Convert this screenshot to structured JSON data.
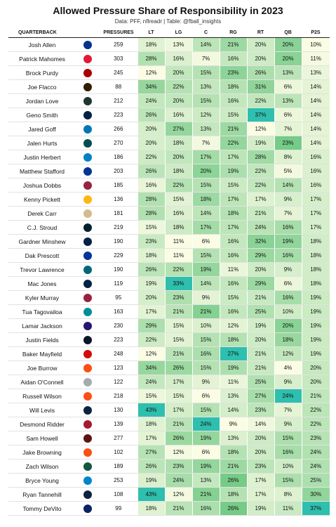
{
  "header": {
    "title": "Allowed Pressure Share of Responsibility in 2023",
    "subtitle": "Data: PFF, nflreadr | Table: @fball_insights"
  },
  "table": {
    "columns": [
      "QUARTERBACK",
      "PRESSURES",
      "LT",
      "LG",
      "C",
      "RG",
      "RT",
      "QB",
      "P2S"
    ],
    "rows": [
      [
        "Josh Allen",
        "259",
        "18%",
        "13%",
        "14%",
        "21%",
        "20%",
        "20%",
        "10%"
      ],
      [
        "Patrick Mahomes",
        "303",
        "28%",
        "16%",
        "7%",
        "16%",
        "20%",
        "20%",
        "11%"
      ],
      [
        "Brock Purdy",
        "245",
        "12%",
        "20%",
        "15%",
        "23%",
        "26%",
        "13%",
        "13%"
      ],
      [
        "Joe Flacco",
        "88",
        "34%",
        "22%",
        "13%",
        "18%",
        "31%",
        "6%",
        "14%"
      ],
      [
        "Jordan Love",
        "212",
        "24%",
        "20%",
        "15%",
        "16%",
        "22%",
        "13%",
        "14%"
      ],
      [
        "Geno Smith",
        "223",
        "26%",
        "16%",
        "12%",
        "15%",
        "37%",
        "6%",
        "14%"
      ],
      [
        "Jared Goff",
        "266",
        "20%",
        "27%",
        "13%",
        "21%",
        "12%",
        "7%",
        "14%"
      ],
      [
        "Jalen Hurts",
        "270",
        "20%",
        "18%",
        "7%",
        "22%",
        "19%",
        "23%",
        "14%"
      ],
      [
        "Justin Herbert",
        "186",
        "22%",
        "20%",
        "17%",
        "17%",
        "28%",
        "8%",
        "16%"
      ],
      [
        "Matthew Stafford",
        "203",
        "26%",
        "18%",
        "20%",
        "19%",
        "22%",
        "5%",
        "16%"
      ],
      [
        "Joshua Dobbs",
        "185",
        "16%",
        "22%",
        "15%",
        "15%",
        "22%",
        "14%",
        "16%"
      ],
      [
        "Kenny Pickett",
        "136",
        "28%",
        "15%",
        "18%",
        "17%",
        "17%",
        "9%",
        "17%"
      ],
      [
        "Derek Carr",
        "181",
        "28%",
        "16%",
        "14%",
        "18%",
        "21%",
        "7%",
        "17%"
      ],
      [
        "C.J. Stroud",
        "219",
        "15%",
        "18%",
        "17%",
        "17%",
        "24%",
        "16%",
        "17%"
      ],
      [
        "Gardner Minshew",
        "190",
        "23%",
        "11%",
        "6%",
        "16%",
        "32%",
        "19%",
        "18%"
      ],
      [
        "Dak Prescott",
        "229",
        "18%",
        "11%",
        "15%",
        "16%",
        "29%",
        "16%",
        "18%"
      ],
      [
        "Trevor Lawrence",
        "190",
        "26%",
        "22%",
        "19%",
        "11%",
        "20%",
        "9%",
        "18%"
      ],
      [
        "Mac Jones",
        "119",
        "19%",
        "33%",
        "14%",
        "16%",
        "29%",
        "6%",
        "18%"
      ],
      [
        "Kyler Murray",
        "95",
        "20%",
        "23%",
        "9%",
        "15%",
        "21%",
        "16%",
        "19%"
      ],
      [
        "Tua Tagovailoa",
        "163",
        "17%",
        "21%",
        "21%",
        "16%",
        "25%",
        "10%",
        "19%"
      ],
      [
        "Lamar Jackson",
        "230",
        "29%",
        "15%",
        "10%",
        "12%",
        "19%",
        "20%",
        "19%"
      ],
      [
        "Justin Fields",
        "223",
        "22%",
        "15%",
        "15%",
        "18%",
        "20%",
        "18%",
        "19%"
      ],
      [
        "Baker Mayfield",
        "248",
        "12%",
        "21%",
        "16%",
        "27%",
        "21%",
        "12%",
        "19%"
      ],
      [
        "Joe Burrow",
        "123",
        "34%",
        "26%",
        "15%",
        "19%",
        "21%",
        "4%",
        "20%"
      ],
      [
        "Aidan O'Connell",
        "122",
        "24%",
        "17%",
        "9%",
        "11%",
        "25%",
        "9%",
        "20%"
      ],
      [
        "Russell Wilson",
        "218",
        "15%",
        "15%",
        "6%",
        "13%",
        "27%",
        "24%",
        "21%"
      ],
      [
        "Will Levis",
        "130",
        "43%",
        "17%",
        "15%",
        "14%",
        "23%",
        "7%",
        "22%"
      ],
      [
        "Desmond Ridder",
        "139",
        "18%",
        "21%",
        "24%",
        "9%",
        "14%",
        "9%",
        "22%"
      ],
      [
        "Sam Howell",
        "277",
        "17%",
        "26%",
        "19%",
        "13%",
        "20%",
        "15%",
        "23%"
      ],
      [
        "Jake Browning",
        "102",
        "27%",
        "12%",
        "6%",
        "18%",
        "20%",
        "16%",
        "24%"
      ],
      [
        "Zach Wilson",
        "189",
        "26%",
        "23%",
        "19%",
        "21%",
        "23%",
        "10%",
        "24%"
      ],
      [
        "Bryce Young",
        "253",
        "19%",
        "24%",
        "13%",
        "26%",
        "17%",
        "15%",
        "25%"
      ],
      [
        "Ryan Tannehill",
        "108",
        "43%",
        "12%",
        "21%",
        "18%",
        "17%",
        "8%",
        "30%"
      ],
      [
        "Tommy DeVito",
        "99",
        "18%",
        "21%",
        "16%",
        "26%",
        "19%",
        "11%",
        "37%"
      ]
    ]
  }
}
